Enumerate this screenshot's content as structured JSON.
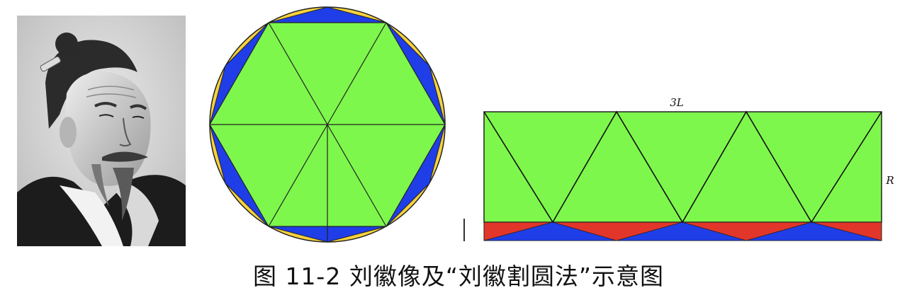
{
  "figure": {
    "caption": "图 11-2   刘徽像及“刘徽割圆法”示意图",
    "portrait": {
      "subject": "刘徽"
    },
    "rect_diagram": {
      "top_label": "3L",
      "side_label": "R"
    },
    "colors": {
      "green": "#7ef74c",
      "blue": "#1f3ee8",
      "red": "#e2362a",
      "yellow": "#f7d23c"
    }
  }
}
